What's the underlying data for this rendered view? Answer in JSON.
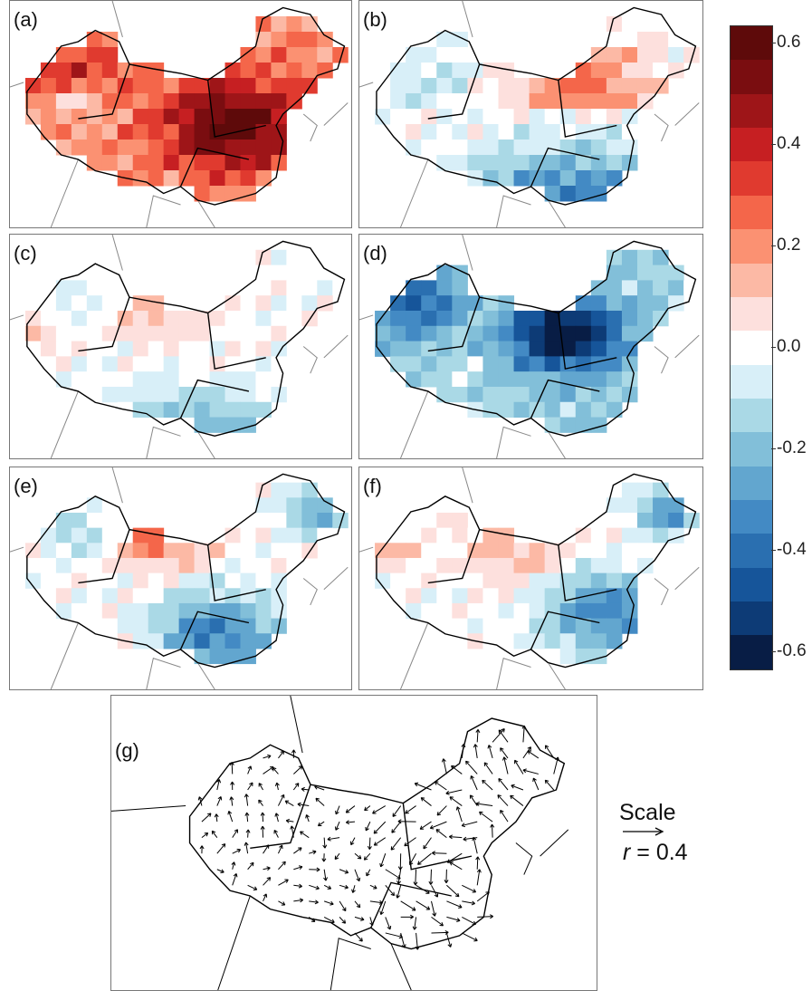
{
  "panels": [
    {
      "id": "a",
      "label": "(a)"
    },
    {
      "id": "b",
      "label": "(b)"
    },
    {
      "id": "c",
      "label": "(c)"
    },
    {
      "id": "d",
      "label": "(d)"
    },
    {
      "id": "e",
      "label": "(e)"
    },
    {
      "id": "f",
      "label": "(f)"
    },
    {
      "id": "g",
      "label": "(g)"
    }
  ],
  "colorbar": {
    "ticks": [
      "0.6",
      "0.4",
      "0.2",
      "0.0",
      "-0.2",
      "-0.4",
      "-0.6"
    ],
    "tick_values": [
      0.6,
      0.4,
      0.2,
      0.0,
      -0.2,
      -0.4,
      -0.6
    ],
    "range": [
      -0.633,
      0.633
    ],
    "colors": [
      "#5e0a0a",
      "#7a0d10",
      "#9e1518",
      "#c61f22",
      "#e03a2f",
      "#f4664a",
      "#fb9172",
      "#fcb9a5",
      "#fde0dd",
      "#ffffff",
      "#d8eff8",
      "#aad9e6",
      "#82bfd9",
      "#62a6cf",
      "#438ac4",
      "#2a6fb0",
      "#16559a",
      "#0d3b76",
      "#081d45"
    ]
  },
  "scale": {
    "title": "Scale",
    "r_symbol": "r",
    "r_text": " = 0.4"
  },
  "chart_data": {
    "type": "heatmap",
    "title": "",
    "panels": [
      "(a)",
      "(b)",
      "(c)",
      "(d)",
      "(e)",
      "(f)"
    ],
    "vector_panel": "(g)",
    "colorbar_range": [
      -0.6,
      0.6
    ],
    "vector_scale_r": 0.4
  }
}
